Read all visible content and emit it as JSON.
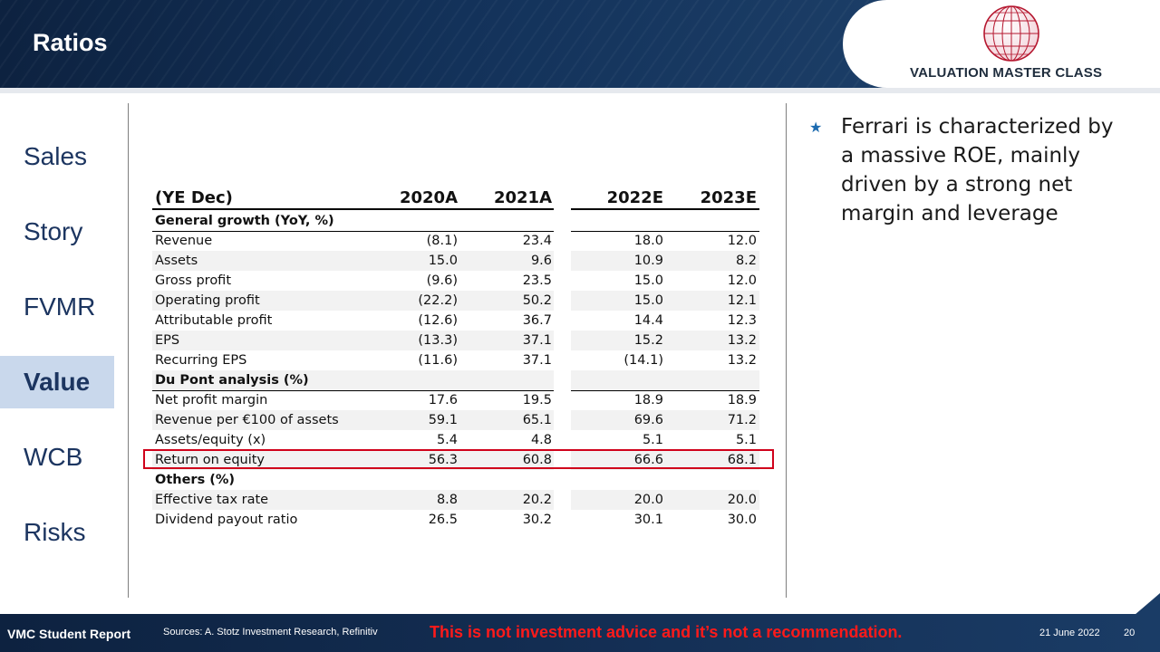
{
  "header": {
    "title": "Ratios",
    "logo_text": "VALUATION MASTER CLASS"
  },
  "sidebar": {
    "items": [
      {
        "label": "Sales"
      },
      {
        "label": "Story"
      },
      {
        "label": "FVMR"
      },
      {
        "label": "Value",
        "active": true
      },
      {
        "label": "WCB"
      },
      {
        "label": "Risks"
      }
    ]
  },
  "table": {
    "columns": [
      "(YE Dec)",
      "2020A",
      "2021A",
      "2022E",
      "2023E"
    ],
    "rows": [
      {
        "type": "section",
        "label": "General growth (YoY, %)"
      },
      {
        "label": "Revenue",
        "values": [
          "(8.1)",
          "23.4",
          "18.0",
          "12.0"
        ]
      },
      {
        "label": "Assets",
        "values": [
          "15.0",
          "9.6",
          "10.9",
          "8.2"
        ]
      },
      {
        "label": "Gross profit",
        "values": [
          "(9.6)",
          "23.5",
          "15.0",
          "12.0"
        ]
      },
      {
        "label": "Operating profit",
        "values": [
          "(22.2)",
          "50.2",
          "15.0",
          "12.1"
        ]
      },
      {
        "label": "Attributable profit",
        "values": [
          "(12.6)",
          "36.7",
          "14.4",
          "12.3"
        ]
      },
      {
        "label": "EPS",
        "values": [
          "(13.3)",
          "37.1",
          "15.2",
          "13.2"
        ]
      },
      {
        "label": "Recurring EPS",
        "values": [
          "(11.6)",
          "37.1",
          "(14.1)",
          "13.2"
        ]
      },
      {
        "type": "section",
        "label": "Du Pont analysis (%)"
      },
      {
        "label": "Net profit margin",
        "values": [
          "17.6",
          "19.5",
          "18.9",
          "18.9"
        ]
      },
      {
        "label": "Revenue per €100 of assets",
        "values": [
          "59.1",
          "65.1",
          "69.6",
          "71.2"
        ]
      },
      {
        "label": "Assets/equity (x)",
        "values": [
          "5.4",
          "4.8",
          "5.1",
          "5.1"
        ]
      },
      {
        "label": "Return on equity",
        "values": [
          "56.3",
          "60.8",
          "66.6",
          "68.1"
        ],
        "highlighted": true
      },
      {
        "type": "section",
        "label": "Others (%)"
      },
      {
        "label": "Effective tax rate",
        "values": [
          "8.8",
          "20.2",
          "20.0",
          "20.0"
        ]
      },
      {
        "label": "Dividend payout ratio",
        "values": [
          "26.5",
          "30.2",
          "30.1",
          "30.0"
        ]
      }
    ]
  },
  "bullet": {
    "text": "Ferrari is characterized by a massive ROE, mainly driven by a strong net margin and leverage"
  },
  "footer": {
    "brand": "VMC Student Report",
    "sources": "Sources: A. Stotz Investment Research, Refinitiv",
    "disclaimer": "This is not investment advice and it’s not a recommendation.",
    "date": "21 June 2022",
    "page": "20"
  },
  "colors": {
    "navy": "#0d2240",
    "active_tab": "#c9d8ec",
    "highlight_border": "#d0021b",
    "disclaimer": "#ff1a1a",
    "bullet_star": "#1c6bb0"
  }
}
